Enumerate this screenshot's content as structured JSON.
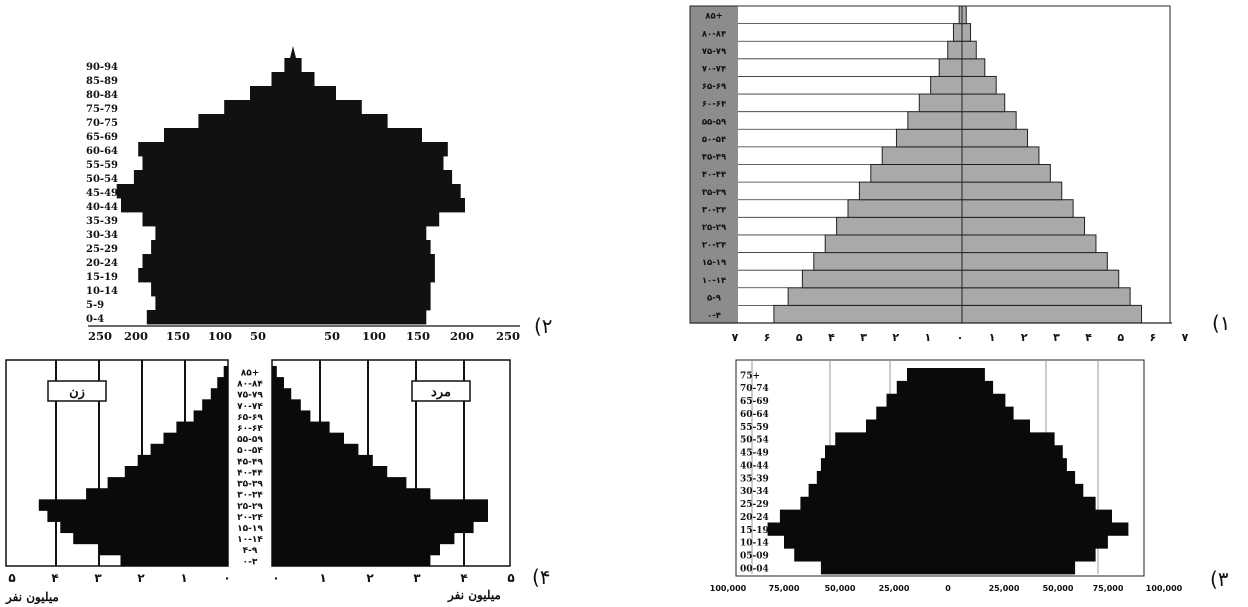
{
  "chart_data": [
    {
      "type": "bar",
      "panel_label": "(۱",
      "categories": [
        "۰-۴",
        "۵-۹",
        "۱۰-۱۴",
        "۱۵-۱۹",
        "۲۰-۲۴",
        "۲۵-۲۹",
        "۳۰-۳۴",
        "۳۵-۳۹",
        "۴۰-۴۴",
        "۴۵-۴۹",
        "۵۰-۵۴",
        "۵۵-۵۹",
        "۶۰-۶۴",
        "۶۵-۶۹",
        "۷۰-۷۴",
        "۷۵-۷۹",
        "۸۰-۸۴",
        "۸۵+"
      ],
      "series": [
        {
          "values": [
            6.6,
            6.1,
            5.6,
            5.2,
            4.8,
            4.4,
            4.0,
            3.6,
            3.2,
            2.8,
            2.3,
            1.9,
            1.5,
            1.1,
            0.8,
            0.5,
            0.3,
            0.1
          ]
        },
        {
          "values": [
            6.3,
            5.9,
            5.5,
            5.1,
            4.7,
            4.3,
            3.9,
            3.5,
            3.1,
            2.7,
            2.3,
            1.9,
            1.5,
            1.2,
            0.8,
            0.5,
            0.3,
            0.15
          ]
        }
      ],
      "x_ticks": [
        "۷",
        "۶",
        "۵",
        "۴",
        "۳",
        "۲",
        "۱",
        "۰",
        "۱",
        "۲",
        "۳",
        "۴",
        "۵",
        "۶",
        "۷"
      ],
      "xlim": [
        -7,
        7
      ],
      "color": "#a9a9a9"
    },
    {
      "type": "bar",
      "panel_label": "(۲",
      "categories": [
        "0-4",
        "5-9",
        "10-14",
        "15-19",
        "20-24",
        "25-29",
        "30-34",
        "35-39",
        "40-44",
        "45-49",
        "50-54",
        "55-59",
        "60-64",
        "65-69",
        "70-75",
        "75-79",
        "80-84",
        "85-89",
        "90-94"
      ],
      "series": [
        {
          "values": [
            170,
            160,
            165,
            180,
            175,
            165,
            160,
            175,
            200,
            205,
            185,
            175,
            180,
            150,
            110,
            80,
            50,
            25,
            10
          ]
        },
        {
          "values": [
            155,
            160,
            160,
            165,
            165,
            160,
            155,
            170,
            200,
            195,
            185,
            175,
            180,
            150,
            110,
            80,
            50,
            25,
            10
          ]
        }
      ],
      "x_ticks": [
        "250",
        "200",
        "150",
        "100",
        "50",
        "50",
        "100",
        "150",
        "200",
        "250"
      ],
      "xlim": [
        -250,
        250
      ],
      "color": "#111111"
    },
    {
      "type": "bar",
      "panel_label": "(۳",
      "categories": [
        "00-04",
        "05-09",
        "10-14",
        "15-19",
        "20-24",
        "25-29",
        "30-34",
        "35-39",
        "40-44",
        "45-49",
        "50-54",
        "55-59",
        "60-64",
        "65-69",
        "70-74",
        "75+"
      ],
      "series": [
        {
          "values": [
            62000,
            75000,
            80000,
            88000,
            82000,
            72000,
            68000,
            64000,
            62000,
            60000,
            55000,
            40000,
            35000,
            30000,
            25000,
            20000
          ]
        },
        {
          "values": [
            62000,
            72000,
            78000,
            88000,
            80000,
            72000,
            66000,
            62000,
            58000,
            56000,
            52000,
            40000,
            32000,
            28000,
            22000,
            18000
          ]
        }
      ],
      "x_ticks": [
        "100,000",
        "75,000",
        "50,000",
        "25,000",
        "0",
        "25,000",
        "50,000",
        "75,000",
        "100,000"
      ],
      "xlim": [
        -100000,
        100000
      ],
      "color": "#0a0a0a"
    },
    {
      "type": "bar",
      "panel_label": "(۴",
      "categories": [
        "۰-۳",
        "۴-۹",
        "۱۰-۱۴",
        "۱۵-۱۹",
        "۲۰-۲۴",
        "۲۵-۲۹",
        "۳۰-۳۴",
        "۳۵-۳۹",
        "۴۰-۴۴",
        "۴۵-۴۹",
        "۵۰-۵۴",
        "۵۵-۵۹",
        "۶۰-۶۴",
        "۶۵-۶۹",
        "۷۰-۷۴",
        "۷۵-۷۹",
        "۸۰-۸۴",
        "۸۵+"
      ],
      "series": [
        {
          "name": "زن",
          "values": [
            2.5,
            3.0,
            3.6,
            3.9,
            4.2,
            4.4,
            3.3,
            2.8,
            2.4,
            2.1,
            1.8,
            1.5,
            1.2,
            0.8,
            0.6,
            0.4,
            0.25,
            0.1
          ]
        },
        {
          "name": "مرد",
          "values": [
            3.3,
            3.5,
            3.8,
            4.2,
            4.5,
            4.5,
            3.3,
            2.8,
            2.4,
            2.1,
            1.8,
            1.5,
            1.2,
            0.8,
            0.6,
            0.4,
            0.25,
            0.1
          ]
        }
      ],
      "x_ticks_left": [
        "۵",
        "۴",
        "۳",
        "۲",
        "۱",
        "۰"
      ],
      "x_ticks_right": [
        "۰",
        "۱",
        "۲",
        "۳",
        "۴",
        "۵"
      ],
      "xlabel": "میلیون نفر",
      "xlim": [
        -5,
        5
      ],
      "color": "#0a0a0a"
    }
  ]
}
